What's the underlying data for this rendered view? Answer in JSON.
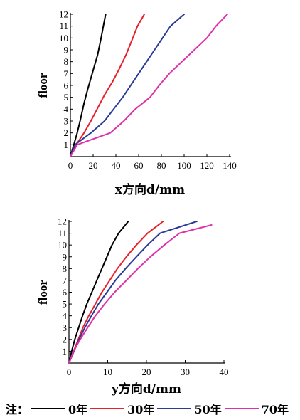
{
  "chart_data": [
    {
      "type": "line",
      "ylabel": "floor",
      "xlabel": "x方向d/mm",
      "xlim": [
        0,
        140
      ],
      "ylim": [
        0,
        12
      ],
      "xticks": [
        "0",
        "20",
        "40",
        "60",
        "80",
        "100",
        "120",
        "140"
      ],
      "yticks": [
        "1",
        "2",
        "3",
        "4",
        "5",
        "6",
        "7",
        "8",
        "9",
        "10",
        "11",
        "12"
      ],
      "series": [
        {
          "name": "0年",
          "color": "#000000",
          "points": [
            [
              0,
              0
            ],
            [
              3,
              1
            ],
            [
              6,
              2
            ],
            [
              9,
              3.2
            ],
            [
              12,
              4.5
            ],
            [
              15,
              5.6
            ],
            [
              18,
              6.6
            ],
            [
              21,
              7.6
            ],
            [
              24,
              8.6
            ],
            [
              27,
              10
            ],
            [
              31,
              12
            ]
          ]
        },
        {
          "name": "30年",
          "color": "#e8202a",
          "points": [
            [
              0,
              0
            ],
            [
              5,
              1
            ],
            [
              12,
              2
            ],
            [
              18,
              3
            ],
            [
              24,
              4.1
            ],
            [
              30,
              5.2
            ],
            [
              37,
              6.3
            ],
            [
              43,
              7.4
            ],
            [
              49,
              8.6
            ],
            [
              54,
              9.8
            ],
            [
              59,
              11
            ],
            [
              65,
              12
            ]
          ]
        },
        {
          "name": "50年",
          "color": "#2a3a9a",
          "points": [
            [
              0,
              0
            ],
            [
              4,
              1
            ],
            [
              18,
              2
            ],
            [
              30,
              3
            ],
            [
              38,
              4
            ],
            [
              46,
              5
            ],
            [
              53,
              6
            ],
            [
              60,
              7
            ],
            [
              67,
              8
            ],
            [
              74,
              9
            ],
            [
              81,
              10
            ],
            [
              88,
              11
            ],
            [
              100,
              12
            ]
          ]
        },
        {
          "name": "70年",
          "color": "#e030a8",
          "points": [
            [
              0,
              0
            ],
            [
              6,
              1
            ],
            [
              35,
              2
            ],
            [
              47,
              3
            ],
            [
              57,
              4
            ],
            [
              70,
              5
            ],
            [
              78,
              6
            ],
            [
              87,
              7
            ],
            [
              98,
              8
            ],
            [
              109,
              9
            ],
            [
              120,
              10
            ],
            [
              128,
              11
            ],
            [
              138,
              12
            ]
          ]
        }
      ]
    },
    {
      "type": "line",
      "ylabel": "floor",
      "xlabel": "y方向d/mm",
      "xlim": [
        0,
        40
      ],
      "ylim": [
        0,
        12
      ],
      "xticks": [
        "0",
        "10",
        "20",
        "30",
        "40"
      ],
      "yticks": [
        "1",
        "2",
        "3",
        "4",
        "5",
        "6",
        "7",
        "8",
        "9",
        "10",
        "11",
        "12"
      ],
      "series": [
        {
          "name": "0年",
          "color": "#000000",
          "points": [
            [
              0,
              0
            ],
            [
              0.7,
              1
            ],
            [
              1.5,
              2
            ],
            [
              2.5,
              3
            ],
            [
              3.5,
              4
            ],
            [
              4.6,
              5
            ],
            [
              5.9,
              6
            ],
            [
              7.2,
              7
            ],
            [
              8.5,
              8
            ],
            [
              9.8,
              9
            ],
            [
              11.1,
              10
            ],
            [
              12.8,
              11
            ],
            [
              15.3,
              12
            ]
          ]
        },
        {
          "name": "30年",
          "color": "#e8202a",
          "points": [
            [
              0,
              0
            ],
            [
              1.2,
              1
            ],
            [
              2.4,
              2
            ],
            [
              3.6,
              3
            ],
            [
              5.1,
              4
            ],
            [
              6.8,
              5
            ],
            [
              8.5,
              6
            ],
            [
              10.5,
              7
            ],
            [
              12.5,
              8
            ],
            [
              14.8,
              9
            ],
            [
              17.4,
              10
            ],
            [
              20.3,
              11
            ],
            [
              24.3,
              12
            ]
          ]
        },
        {
          "name": "50年",
          "color": "#2a3a9a",
          "points": [
            [
              0,
              0
            ],
            [
              1.3,
              1
            ],
            [
              2.6,
              2
            ],
            [
              4.1,
              3
            ],
            [
              5.8,
              4
            ],
            [
              7.6,
              5
            ],
            [
              9.8,
              6
            ],
            [
              12,
              7
            ],
            [
              14.6,
              8
            ],
            [
              17.4,
              9
            ],
            [
              20.3,
              10
            ],
            [
              23.5,
              11
            ],
            [
              33,
              12
            ]
          ]
        },
        {
          "name": "70年",
          "color": "#e030a8",
          "points": [
            [
              0,
              0
            ],
            [
              1.2,
              1
            ],
            [
              2.9,
              2
            ],
            [
              4.8,
              3
            ],
            [
              6.8,
              4
            ],
            [
              9.2,
              5
            ],
            [
              11.8,
              6
            ],
            [
              14.8,
              7
            ],
            [
              17.8,
              8
            ],
            [
              21,
              9
            ],
            [
              24.6,
              10
            ],
            [
              28.5,
              11
            ],
            [
              36.8,
              11.7
            ]
          ]
        }
      ]
    }
  ],
  "legend": {
    "note": "注：",
    "items": [
      {
        "label": "0年",
        "color": "#000000"
      },
      {
        "label": "30年",
        "color": "#e8202a"
      },
      {
        "label": "50年",
        "color": "#2a3a9a"
      },
      {
        "label": "70年",
        "color": "#e030a8"
      }
    ]
  }
}
